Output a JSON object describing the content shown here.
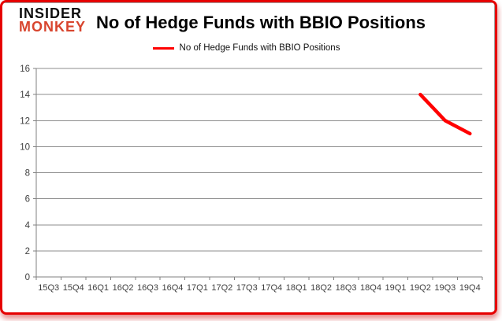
{
  "logo": {
    "line1": "INSIDER",
    "line2": "MONKEY"
  },
  "header": {
    "title": "No of Hedge Funds with BBIO Positions"
  },
  "legend": {
    "label": "No of Hedge Funds with BBIO Positions"
  },
  "colors": {
    "series_red": "#ff0000",
    "logo_red": "#d8452e",
    "logo_black": "#0d0d0d",
    "frame_red": "#e60000",
    "gridline": "#8c8c8c",
    "axis": "#808080",
    "tick_text": "#3f3f3f"
  },
  "chart_data": {
    "type": "line",
    "title": "No of Hedge Funds with BBIO Positions",
    "xlabel": "",
    "ylabel": "",
    "categories": [
      "15Q3",
      "15Q4",
      "16Q1",
      "16Q2",
      "16Q3",
      "16Q4",
      "17Q1",
      "17Q2",
      "17Q3",
      "17Q4",
      "18Q1",
      "18Q2",
      "18Q3",
      "18Q4",
      "19Q1",
      "19Q2",
      "19Q3",
      "19Q4"
    ],
    "series": [
      {
        "name": "No of Hedge Funds with BBIO Positions",
        "color": "#ff0000",
        "values": [
          null,
          null,
          null,
          null,
          null,
          null,
          null,
          null,
          null,
          null,
          null,
          null,
          null,
          null,
          null,
          14,
          12,
          11
        ]
      }
    ],
    "ylim": [
      0,
      16
    ],
    "yticks": [
      0,
      2,
      4,
      6,
      8,
      10,
      12,
      14,
      16
    ],
    "grid": true,
    "legend_position": "top-center"
  }
}
